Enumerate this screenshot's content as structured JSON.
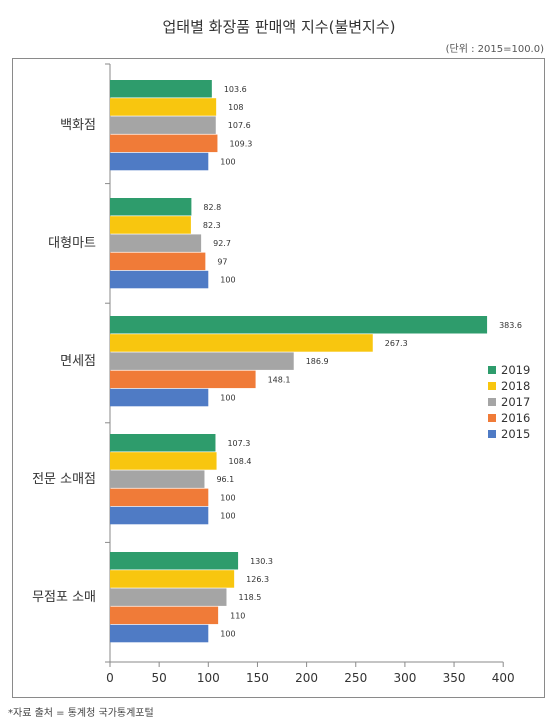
{
  "page": {
    "title": "업태별 화장품 판매액 지수(불변지수)",
    "unit": "(단위 : 2015=100.0)",
    "source_note": "*자료 출처 = 통계청 국가통계포털"
  },
  "colors": {
    "2019": "#2e9c6c",
    "2018": "#f8c60f",
    "2017": "#a5a5a5",
    "2016": "#f07b38",
    "2015": "#4f7bc5"
  },
  "chart_data": {
    "type": "bar",
    "orientation": "horizontal",
    "title": "업태별 화장품 판매액 지수(불변지수)",
    "categories": [
      "백화점",
      "대형마트",
      "면세점",
      "전문 소매점",
      "무점포 소매"
    ],
    "series": [
      {
        "name": "2019",
        "color": "#2e9c6c",
        "values": [
          103.6,
          82.8,
          383.6,
          107.3,
          130.3
        ]
      },
      {
        "name": "2018",
        "color": "#f8c60f",
        "values": [
          108,
          82.3,
          267.3,
          108.4,
          126.3
        ]
      },
      {
        "name": "2017",
        "color": "#a5a5a5",
        "values": [
          107.6,
          92.7,
          186.9,
          96.1,
          118.5
        ]
      },
      {
        "name": "2016",
        "color": "#f07b38",
        "values": [
          109.3,
          97,
          148.1,
          100,
          110
        ]
      },
      {
        "name": "2015",
        "color": "#4f7bc5",
        "values": [
          100,
          100,
          100,
          100,
          100
        ]
      }
    ],
    "value_labels": [
      [
        "103.6",
        "108",
        "107.6",
        "109.3",
        "100"
      ],
      [
        "82.8",
        "82.3",
        "92.7",
        "97",
        "100"
      ],
      [
        "383.6",
        "267.3",
        "186.9",
        "148.1",
        "100"
      ],
      [
        "107.3",
        "108.4",
        "96.1",
        "100",
        "100"
      ],
      [
        "130.3",
        "126.3",
        "118.5",
        "110",
        "100"
      ]
    ],
    "x_ticks": [
      "0",
      "50",
      "100",
      "150",
      "200",
      "250",
      "300",
      "350",
      "400"
    ],
    "xlim": [
      0,
      400
    ],
    "grid": false,
    "legend": {
      "position": "right",
      "items": [
        {
          "label": "2019",
          "color": "#2e9c6c"
        },
        {
          "label": "2018",
          "color": "#f8c60f"
        },
        {
          "label": "2017",
          "color": "#a5a5a5"
        },
        {
          "label": "2016",
          "color": "#f07b38"
        },
        {
          "label": "2015",
          "color": "#4f7bc5"
        }
      ]
    }
  }
}
